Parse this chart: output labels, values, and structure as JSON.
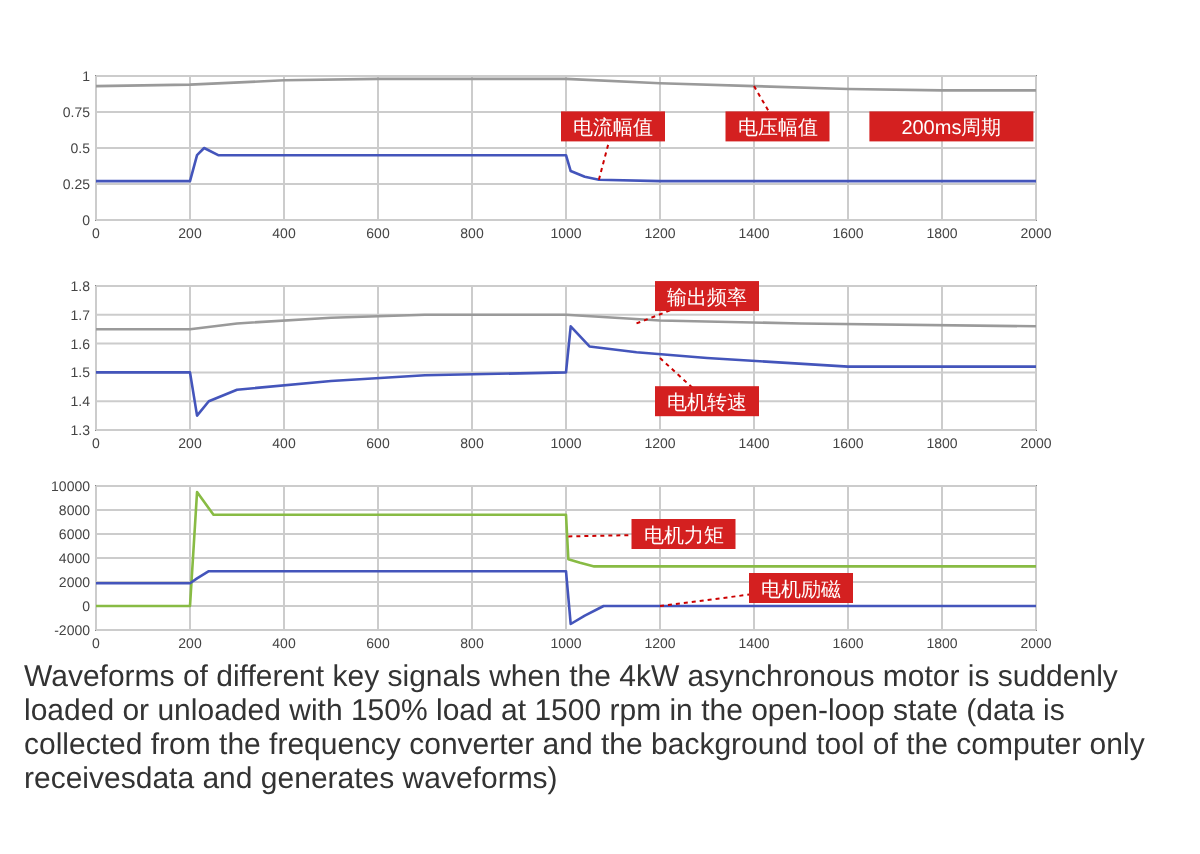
{
  "chart_data": [
    {
      "type": "line",
      "xlim": [
        0,
        2000
      ],
      "xticks": [
        0,
        200,
        400,
        600,
        800,
        1000,
        1200,
        1400,
        1600,
        1800,
        2000
      ],
      "ylim": [
        0,
        1
      ],
      "yticks": [
        0,
        0.25,
        0.5,
        0.75,
        1
      ],
      "grid": true,
      "series": [
        {
          "color": "#9a9a9a",
          "x": [
            0,
            200,
            400,
            600,
            800,
            1000,
            1200,
            1400,
            1600,
            1800,
            2000
          ],
          "values": [
            0.93,
            0.94,
            0.97,
            0.98,
            0.98,
            0.98,
            0.95,
            0.93,
            0.91,
            0.9,
            0.9
          ]
        },
        {
          "color": "#4455bb",
          "x": [
            0,
            200,
            215,
            230,
            260,
            600,
            1000,
            1010,
            1040,
            1070,
            1200,
            2000
          ],
          "values": [
            0.27,
            0.27,
            0.45,
            0.5,
            0.45,
            0.45,
            0.45,
            0.34,
            0.3,
            0.28,
            0.27,
            0.27
          ]
        }
      ],
      "annotations": [
        {
          "text": "电流幅值",
          "x": 1070,
          "y": 0.28
        },
        {
          "text": "电压幅值",
          "x": 1400,
          "y": 0.93
        },
        "200ms周期"
      ]
    },
    {
      "type": "line",
      "xlim": [
        0,
        2000
      ],
      "xticks": [
        0,
        200,
        400,
        600,
        800,
        1000,
        1200,
        1400,
        1600,
        1800,
        2000
      ],
      "ylim": [
        1.3,
        1.8
      ],
      "yticks": [
        1.3,
        1.4,
        1.5,
        1.6,
        1.7,
        1.8
      ],
      "grid": true,
      "series": [
        {
          "color": "#9a9a9a",
          "x": [
            0,
            200,
            300,
            500,
            700,
            1000,
            1200,
            1500,
            2000
          ],
          "values": [
            1.65,
            1.65,
            1.67,
            1.69,
            1.7,
            1.7,
            1.68,
            1.67,
            1.66
          ]
        },
        {
          "color": "#4455bb",
          "x": [
            0,
            200,
            215,
            240,
            300,
            500,
            700,
            1000,
            1010,
            1050,
            1150,
            1300,
            1600,
            2000
          ],
          "values": [
            1.5,
            1.5,
            1.35,
            1.4,
            1.44,
            1.47,
            1.49,
            1.5,
            1.66,
            1.59,
            1.57,
            1.55,
            1.52,
            1.52
          ]
        }
      ],
      "annotations": [
        {
          "text": "输出频率",
          "x": 1150,
          "y": 1.67
        },
        {
          "text": "电机转速",
          "x": 1200,
          "y": 1.55
        }
      ]
    },
    {
      "type": "line",
      "xlim": [
        0,
        2000
      ],
      "xticks": [
        0,
        200,
        400,
        600,
        800,
        1000,
        1200,
        1400,
        1600,
        1800,
        2000
      ],
      "ylim": [
        -2000,
        10000
      ],
      "yticks": [
        -2000,
        0,
        2000,
        4000,
        6000,
        8000,
        10000
      ],
      "grid": true,
      "series": [
        {
          "color": "#88bb44",
          "x": [
            0,
            200,
            215,
            250,
            600,
            1000,
            1005,
            1030,
            1060,
            1500,
            2000
          ],
          "values": [
            0,
            0,
            9500,
            7600,
            7600,
            7600,
            3900,
            3600,
            3300,
            3300,
            3300
          ]
        },
        {
          "color": "#4455bb",
          "x": [
            0,
            200,
            215,
            240,
            600,
            1000,
            1010,
            1040,
            1080,
            1500,
            2000
          ],
          "values": [
            1900,
            1900,
            2300,
            2900,
            2900,
            2900,
            -1500,
            -800,
            0,
            0,
            0
          ]
        }
      ],
      "annotations": [
        {
          "text": "电机力矩",
          "x": 1005,
          "y": 5800
        },
        {
          "text": "电机励磁",
          "x": 1200,
          "y": 0
        },
        "Waveforms of different key signals when the 4kW asynchronous motor is suddenly loaded or unloaded with 150% load at 1500 rpm in the open-loop state (data is collected from the frequency converter and the background tool of the computer only receivesdata and generates waveforms)"
      ]
    }
  ]
}
